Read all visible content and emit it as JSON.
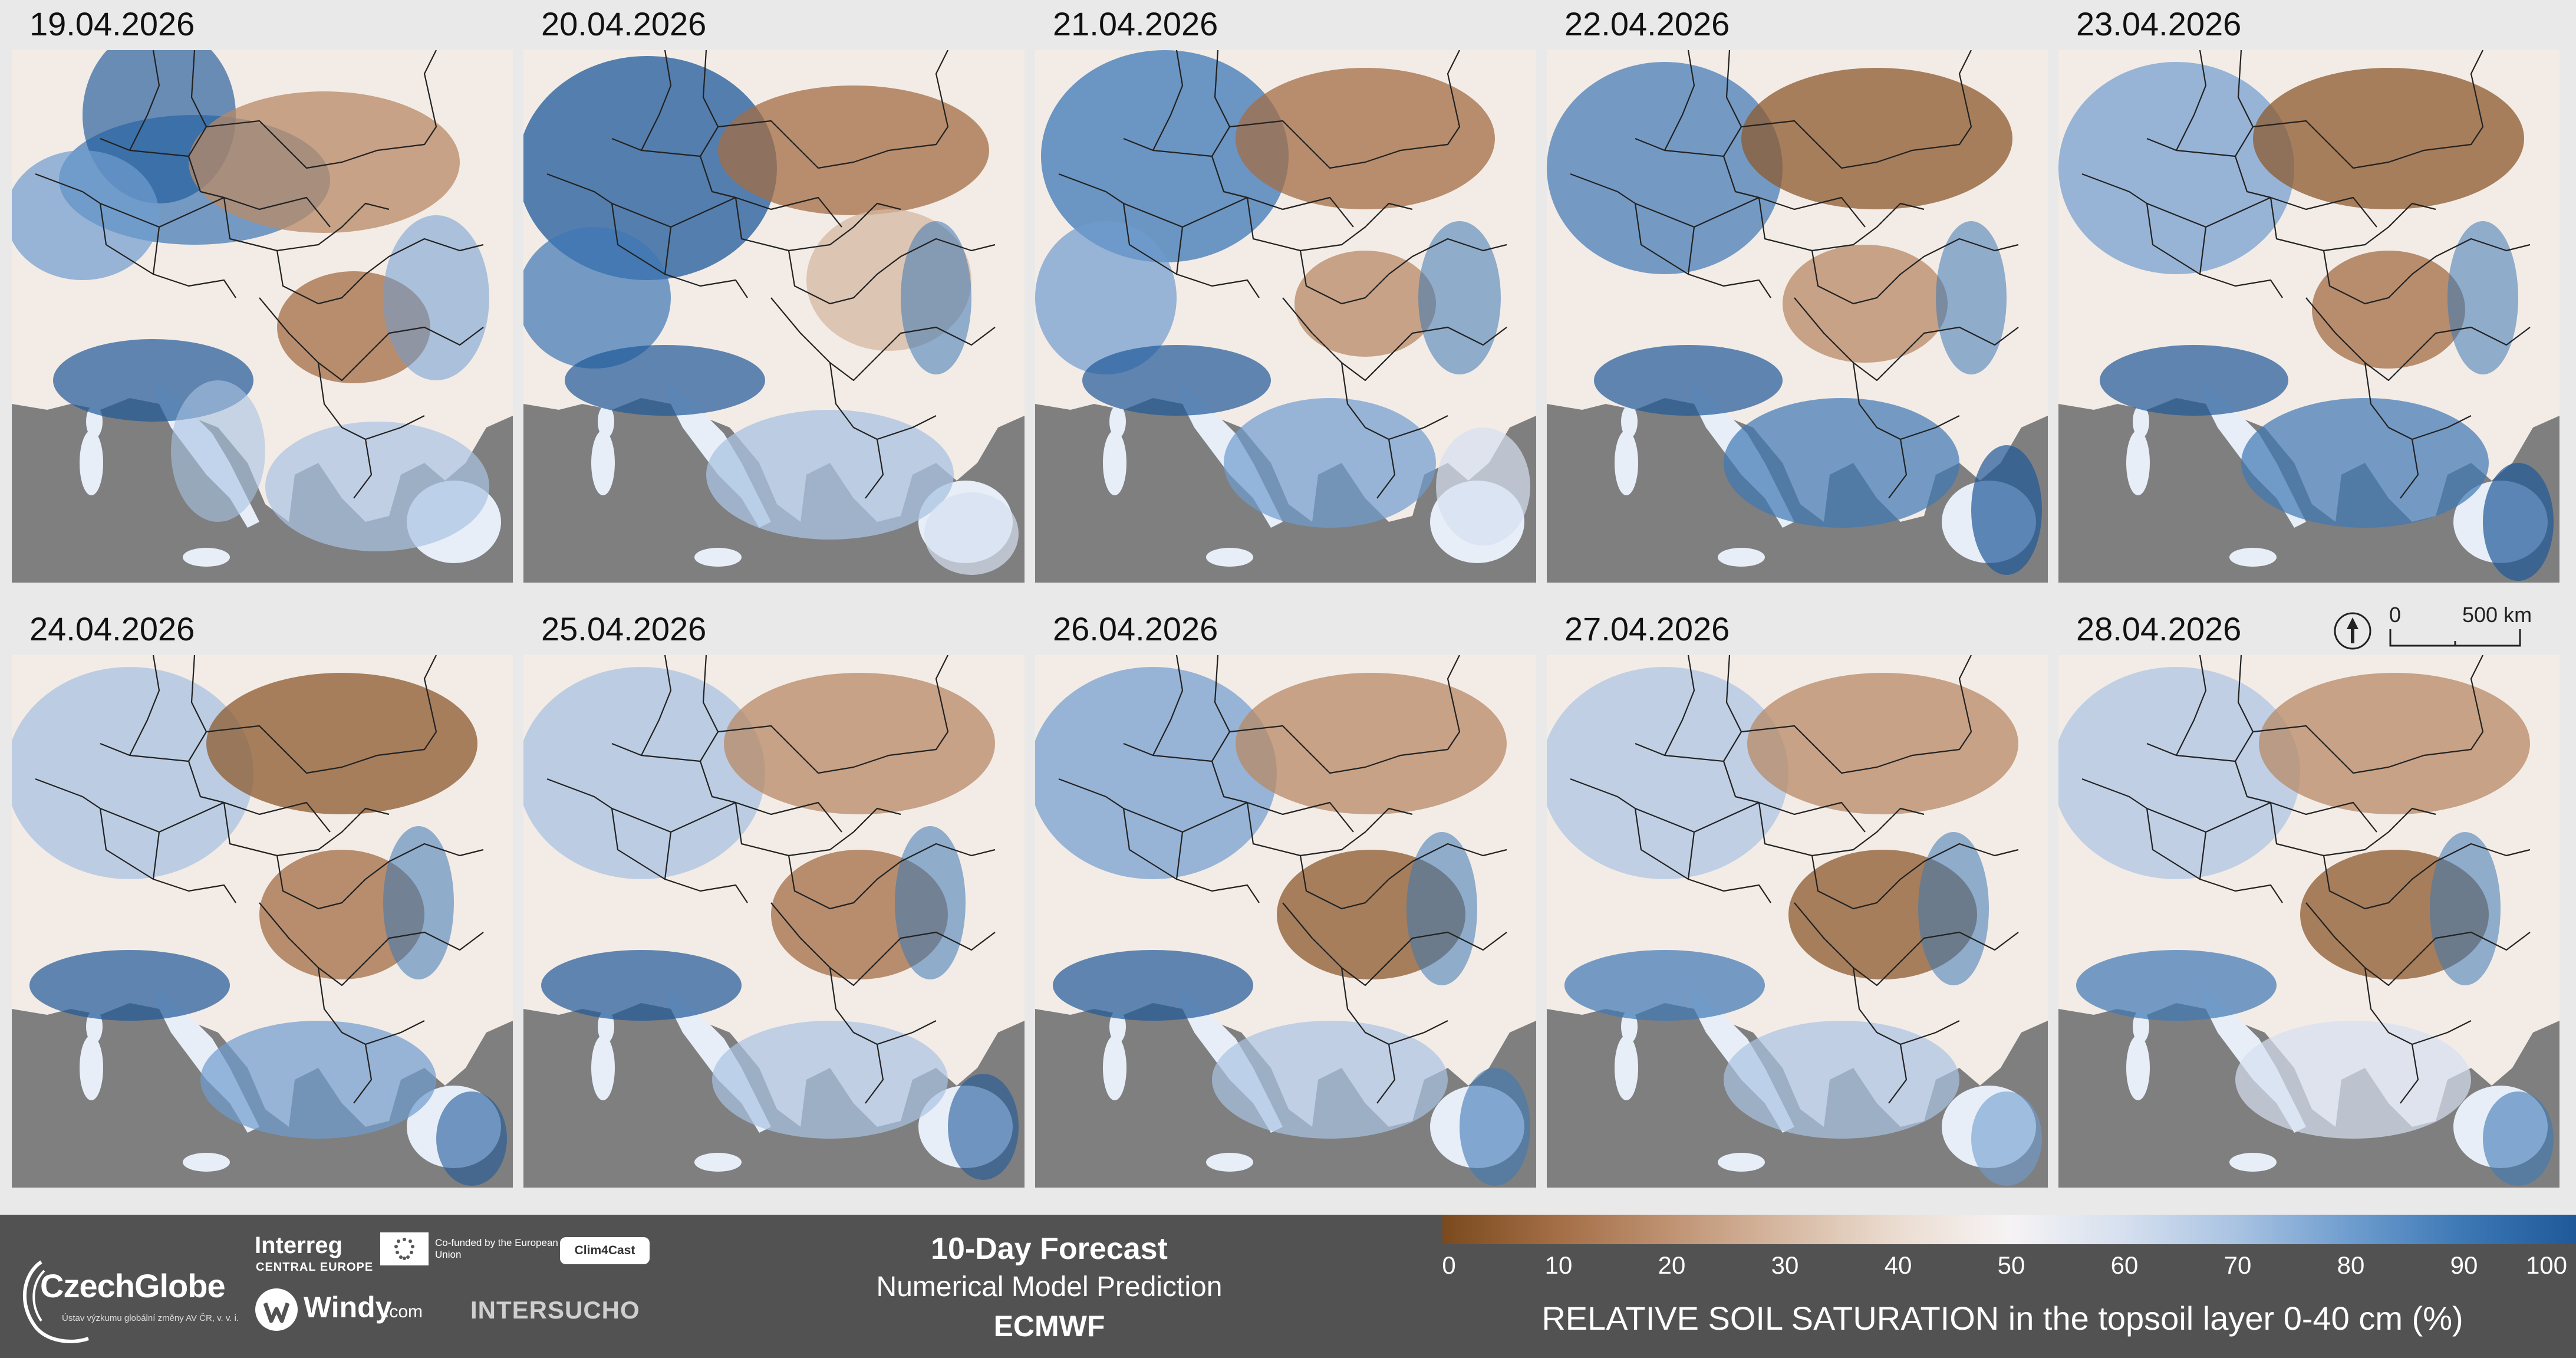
{
  "dates": [
    "19.04.2026",
    "20.04.2026",
    "21.04.2026",
    "22.04.2026",
    "23.04.2026",
    "24.04.2026",
    "25.04.2026",
    "26.04.2026",
    "27.04.2026",
    "28.04.2026"
  ],
  "scalebar": {
    "zero": "0",
    "distance": "500 km"
  },
  "footer": {
    "logo_czechglobe": "CzechGlobe",
    "logo_czechglobe_sub": "Ústav výzkumu globální změny AV ČR, v. v. i.",
    "logo_interreg": "Interreg",
    "logo_interreg_sub": "CENTRAL EUROPE",
    "cofunded": "Co-funded by the European Union",
    "logo_clim4cast": "Clim4Cast",
    "logo_windy": "Windy",
    "logo_windy_suffix": ".com",
    "logo_intersucho": "INTERSUCHO",
    "title": "10-Day Forecast",
    "subtitle": "Numerical Model Prediction",
    "model": "ECMWF"
  },
  "legend": {
    "ticks": [
      "0",
      "10",
      "20",
      "30",
      "40",
      "50",
      "60",
      "70",
      "80",
      "90",
      "100"
    ],
    "title": "RELATIVE SOIL SATURATION in the topsoil layer 0-40 cm (%)",
    "colors": [
      "#7a4a1e",
      "#a36d45",
      "#bf9272",
      "#d6b8a1",
      "#ebdcd0",
      "#f6f3f4",
      "#d6e0ef",
      "#a9c3e2",
      "#6f9dcf",
      "#3d78b5",
      "#1f5999"
    ]
  },
  "colors": {
    "sea": "#7f7f7f",
    "dry": "#8c5a2e",
    "wet": "#1f5999",
    "neutral": "#f6f3f4"
  }
}
